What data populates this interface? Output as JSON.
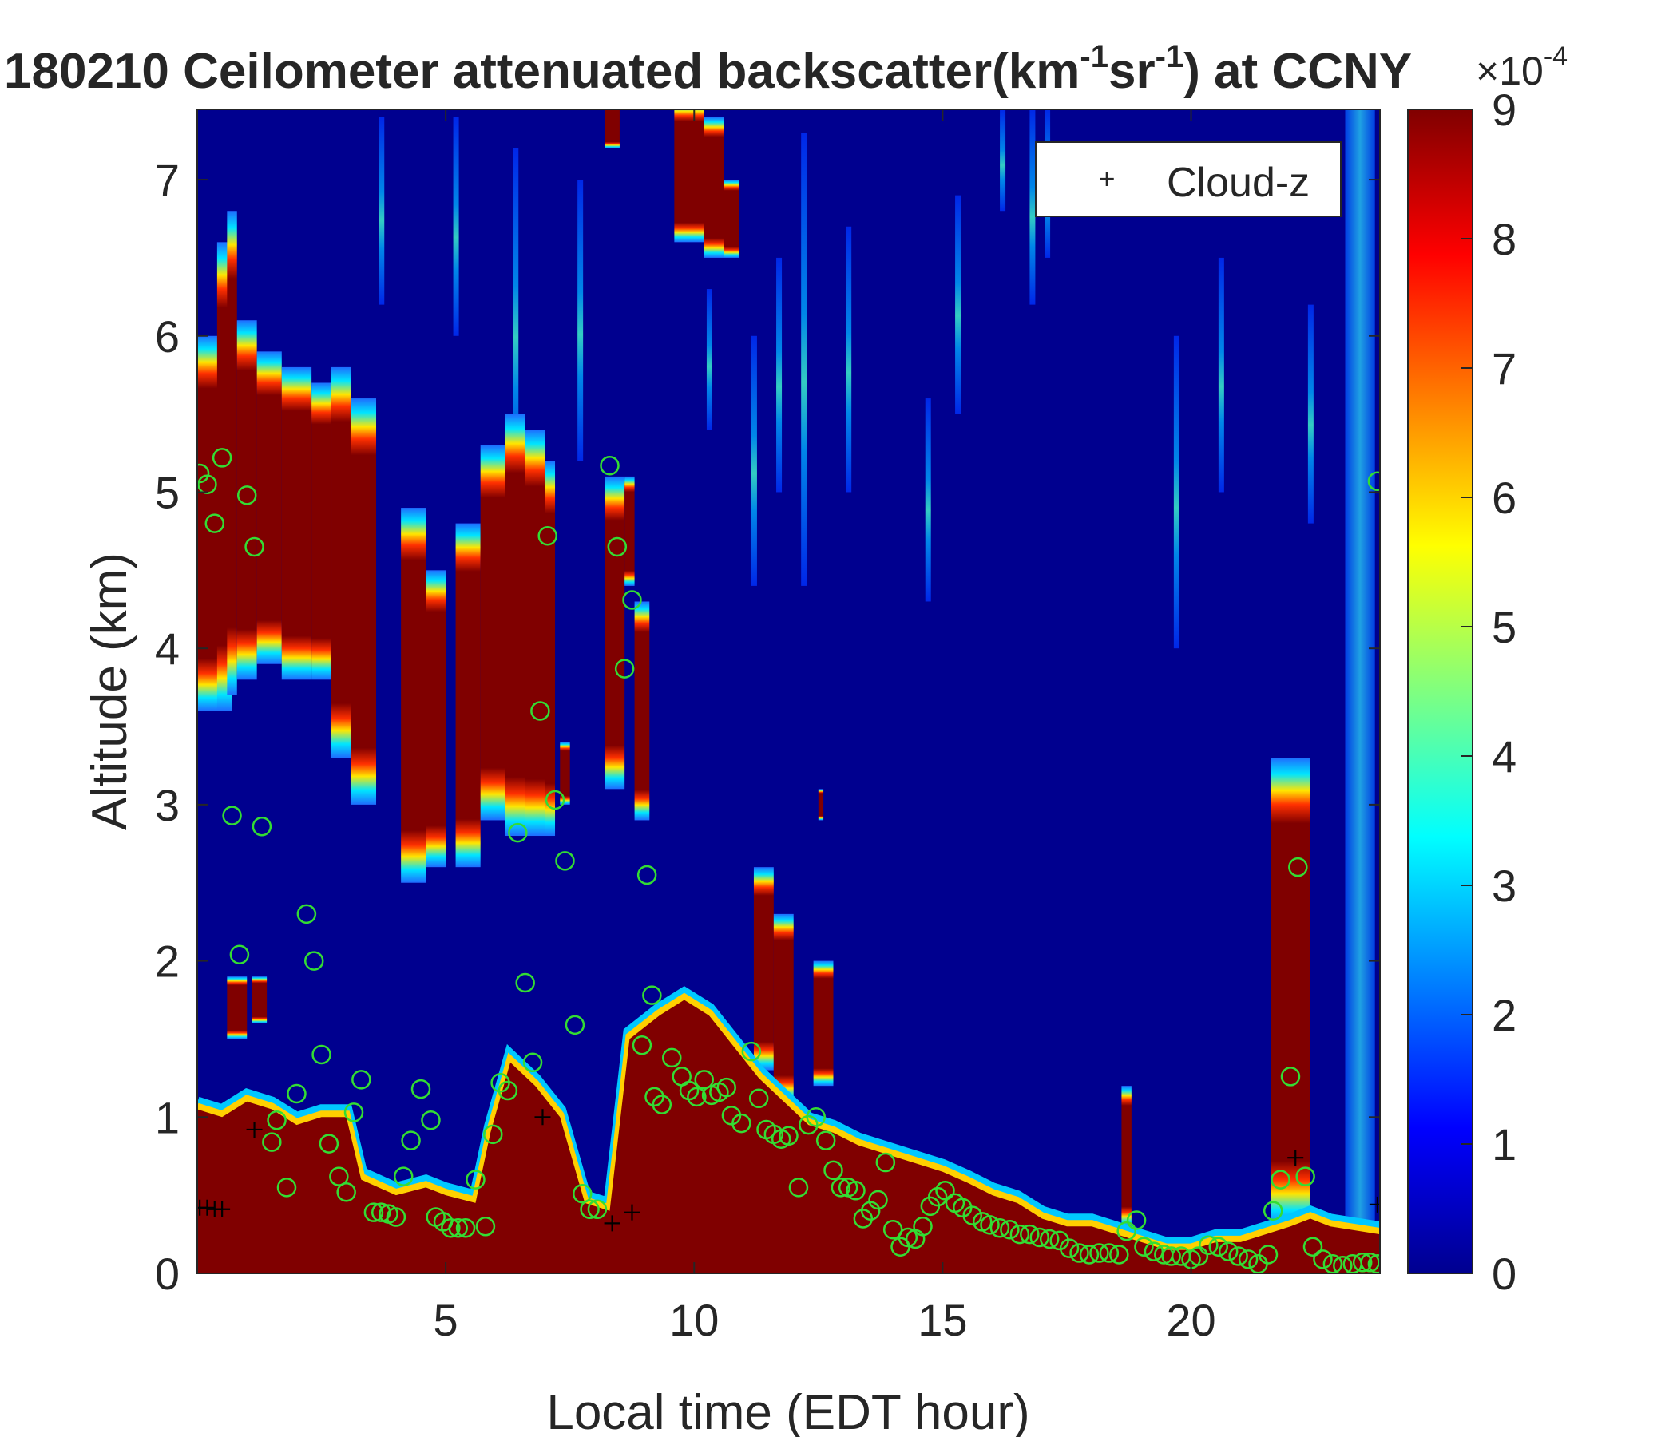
{
  "chart_data": {
    "type": "heatmap",
    "title_parts": {
      "prefix": "180210 Ceilometer attenuated backscatter(km",
      "sup1": "-1",
      "mid": "sr",
      "sup2": "-1",
      "suffix": ") at CCNY"
    },
    "xlabel": "Local time (EDT hour)",
    "ylabel": "Altitude (km)",
    "xlim": [
      0,
      23.8
    ],
    "ylim": [
      0,
      7.45
    ],
    "xticks": [
      "5",
      "10",
      "15",
      "20"
    ],
    "xtick_values": [
      5,
      10,
      15,
      20
    ],
    "yticks": [
      "0",
      "1",
      "2",
      "3",
      "4",
      "5",
      "6",
      "7"
    ],
    "ytick_values": [
      0,
      1,
      2,
      3,
      4,
      5,
      6,
      7
    ],
    "colorbar": {
      "min": 0,
      "max": 9,
      "ticks": [
        "0",
        "1",
        "2",
        "3",
        "4",
        "5",
        "6",
        "7",
        "8",
        "9"
      ],
      "tick_values": [
        0,
        1,
        2,
        3,
        4,
        5,
        6,
        7,
        8,
        9
      ],
      "multiplier": "×10",
      "exponent": "-4",
      "colormap": "jet"
    },
    "legend": {
      "position": "top-right",
      "entries": [
        {
          "marker": "+",
          "label": "Cloud-z"
        }
      ]
    },
    "colors": {
      "background": "#00008f",
      "saturated": "#800000",
      "mlh_marker": "#33dd33",
      "cloud_marker": "#000000"
    },
    "ground_layer_top": [
      [
        0.0,
        1.05
      ],
      [
        0.5,
        1.0
      ],
      [
        1.0,
        1.1
      ],
      [
        1.5,
        1.05
      ],
      [
        2.0,
        0.95
      ],
      [
        2.5,
        1.0
      ],
      [
        3.0,
        1.0
      ],
      [
        3.3,
        0.6
      ],
      [
        4.0,
        0.5
      ],
      [
        4.6,
        0.55
      ],
      [
        5.0,
        0.5
      ],
      [
        5.6,
        0.45
      ],
      [
        5.9,
        0.9
      ],
      [
        6.3,
        1.35
      ],
      [
        6.8,
        1.2
      ],
      [
        7.3,
        1.0
      ],
      [
        7.8,
        0.45
      ],
      [
        8.3,
        0.4
      ],
      [
        8.7,
        1.5
      ],
      [
        9.3,
        1.65
      ],
      [
        9.8,
        1.75
      ],
      [
        10.3,
        1.65
      ],
      [
        10.8,
        1.45
      ],
      [
        11.3,
        1.25
      ],
      [
        11.8,
        1.1
      ],
      [
        12.3,
        0.95
      ],
      [
        12.8,
        0.9
      ],
      [
        13.3,
        0.82
      ],
      [
        14.0,
        0.75
      ],
      [
        14.5,
        0.7
      ],
      [
        15.0,
        0.65
      ],
      [
        15.5,
        0.58
      ],
      [
        16.0,
        0.5
      ],
      [
        16.5,
        0.45
      ],
      [
        17.0,
        0.35
      ],
      [
        17.5,
        0.3
      ],
      [
        18.0,
        0.3
      ],
      [
        18.5,
        0.25
      ],
      [
        19.0,
        0.2
      ],
      [
        19.5,
        0.15
      ],
      [
        20.0,
        0.15
      ],
      [
        20.5,
        0.2
      ],
      [
        21.0,
        0.2
      ],
      [
        21.5,
        0.25
      ],
      [
        22.0,
        0.3
      ],
      [
        22.4,
        0.35
      ],
      [
        22.8,
        0.3
      ],
      [
        23.8,
        0.25
      ]
    ],
    "aerosol_cloud_blocks": [
      [
        0.0,
        0.6,
        3.6,
        6.0
      ],
      [
        0.4,
        0.7,
        3.6,
        6.6
      ],
      [
        0.6,
        0.8,
        3.7,
        6.8
      ],
      [
        0.8,
        1.2,
        3.8,
        6.1
      ],
      [
        1.2,
        1.7,
        3.9,
        5.9
      ],
      [
        1.7,
        2.3,
        3.8,
        5.8
      ],
      [
        2.3,
        2.7,
        3.8,
        5.7
      ],
      [
        2.7,
        3.1,
        3.3,
        5.8
      ],
      [
        3.1,
        3.6,
        3.0,
        5.6
      ],
      [
        4.1,
        4.6,
        2.5,
        4.9
      ],
      [
        4.6,
        5.0,
        2.6,
        4.5
      ],
      [
        5.2,
        5.7,
        2.6,
        4.8
      ],
      [
        5.7,
        6.2,
        2.9,
        5.3
      ],
      [
        6.2,
        6.6,
        2.8,
        5.5
      ],
      [
        6.6,
        7.0,
        2.8,
        5.4
      ],
      [
        7.0,
        7.2,
        2.8,
        5.2
      ],
      [
        7.3,
        7.5,
        3.0,
        3.4
      ],
      [
        8.2,
        8.6,
        3.1,
        5.1
      ],
      [
        8.6,
        8.8,
        4.4,
        5.1
      ],
      [
        8.8,
        9.1,
        2.9,
        4.3
      ],
      [
        9.6,
        10.2,
        6.6,
        7.5
      ],
      [
        10.2,
        10.6,
        6.5,
        7.4
      ],
      [
        10.6,
        10.9,
        6.5,
        7.0
      ],
      [
        8.2,
        8.5,
        7.2,
        7.5
      ],
      [
        0.6,
        1.0,
        1.5,
        1.9
      ],
      [
        1.1,
        1.4,
        1.6,
        1.9
      ],
      [
        12.5,
        12.6,
        2.9,
        3.1
      ],
      [
        11.2,
        11.6,
        1.3,
        2.6
      ],
      [
        11.6,
        12.0,
        1.1,
        2.3
      ],
      [
        12.4,
        12.8,
        1.2,
        2.0
      ],
      [
        18.6,
        18.8,
        0.3,
        1.2
      ],
      [
        21.6,
        22.4,
        0.3,
        3.3
      ]
    ],
    "faint_streaks": [
      [
        3.7,
        6.2,
        7.4
      ],
      [
        5.2,
        6.0,
        7.4
      ],
      [
        6.4,
        5.0,
        7.2
      ],
      [
        7.7,
        5.2,
        7.0
      ],
      [
        11.2,
        4.4,
        6.0
      ],
      [
        11.7,
        5.0,
        6.5
      ],
      [
        12.2,
        4.4,
        7.3
      ],
      [
        13.1,
        5.0,
        6.7
      ],
      [
        15.3,
        5.5,
        6.9
      ],
      [
        16.2,
        6.8,
        7.45
      ],
      [
        16.8,
        6.2,
        7.45
      ],
      [
        17.1,
        6.5,
        7.45
      ],
      [
        19.7,
        4.0,
        6.0
      ],
      [
        20.6,
        5.0,
        6.5
      ],
      [
        22.4,
        4.8,
        6.2
      ],
      [
        14.7,
        4.3,
        5.6
      ],
      [
        10.3,
        5.4,
        6.3
      ]
    ],
    "clear_slot": [
      23.1,
      23.7,
      0.3,
      7.45
    ],
    "mlh_points": [
      [
        0.05,
        5.12
      ],
      [
        0.2,
        5.05
      ],
      [
        0.35,
        4.8
      ],
      [
        0.5,
        5.22
      ],
      [
        0.7,
        2.93
      ],
      [
        0.85,
        2.04
      ],
      [
        1.0,
        4.98
      ],
      [
        1.15,
        4.65
      ],
      [
        1.3,
        2.86
      ],
      [
        1.6,
        0.98
      ],
      [
        1.5,
        0.84
      ],
      [
        1.8,
        0.55
      ],
      [
        2.0,
        1.15
      ],
      [
        2.2,
        2.3
      ],
      [
        2.35,
        2.0
      ],
      [
        2.5,
        1.4
      ],
      [
        2.65,
        0.83
      ],
      [
        2.85,
        0.62
      ],
      [
        3.0,
        0.52
      ],
      [
        3.15,
        1.03
      ],
      [
        3.3,
        1.24
      ],
      [
        3.55,
        0.39
      ],
      [
        3.7,
        0.39
      ],
      [
        3.85,
        0.38
      ],
      [
        4.0,
        0.36
      ],
      [
        4.15,
        0.62
      ],
      [
        4.3,
        0.85
      ],
      [
        4.5,
        1.18
      ],
      [
        4.7,
        0.98
      ],
      [
        4.8,
        0.36
      ],
      [
        4.95,
        0.33
      ],
      [
        5.1,
        0.29
      ],
      [
        5.25,
        0.29
      ],
      [
        5.4,
        0.29
      ],
      [
        5.6,
        0.6
      ],
      [
        5.8,
        0.3
      ],
      [
        5.95,
        0.89
      ],
      [
        6.1,
        1.22
      ],
      [
        6.25,
        1.17
      ],
      [
        6.45,
        2.82
      ],
      [
        6.6,
        1.86
      ],
      [
        6.75,
        1.35
      ],
      [
        6.9,
        3.6
      ],
      [
        7.05,
        4.72
      ],
      [
        7.2,
        3.03
      ],
      [
        7.4,
        2.64
      ],
      [
        7.6,
        1.59
      ],
      [
        7.75,
        0.51
      ],
      [
        7.9,
        0.41
      ],
      [
        8.05,
        0.41
      ],
      [
        8.3,
        5.17
      ],
      [
        8.45,
        4.65
      ],
      [
        8.6,
        3.87
      ],
      [
        8.75,
        4.31
      ],
      [
        9.05,
        2.55
      ],
      [
        9.15,
        1.78
      ],
      [
        8.95,
        1.46
      ],
      [
        9.2,
        1.13
      ],
      [
        9.35,
        1.08
      ],
      [
        9.55,
        1.38
      ],
      [
        9.75,
        1.26
      ],
      [
        9.9,
        1.17
      ],
      [
        10.05,
        1.13
      ],
      [
        10.2,
        1.24
      ],
      [
        10.35,
        1.14
      ],
      [
        10.5,
        1.16
      ],
      [
        10.65,
        1.19
      ],
      [
        10.75,
        1.01
      ],
      [
        10.95,
        0.96
      ],
      [
        11.15,
        1.42
      ],
      [
        11.3,
        1.12
      ],
      [
        11.45,
        0.92
      ],
      [
        11.6,
        0.89
      ],
      [
        11.75,
        0.86
      ],
      [
        11.9,
        0.88
      ],
      [
        12.1,
        0.55
      ],
      [
        12.3,
        0.95
      ],
      [
        12.45,
        1.0
      ],
      [
        12.65,
        0.85
      ],
      [
        12.8,
        0.66
      ],
      [
        12.95,
        0.55
      ],
      [
        13.1,
        0.55
      ],
      [
        13.25,
        0.53
      ],
      [
        13.4,
        0.35
      ],
      [
        13.55,
        0.4
      ],
      [
        13.7,
        0.47
      ],
      [
        13.85,
        0.71
      ],
      [
        14.0,
        0.28
      ],
      [
        14.15,
        0.17
      ],
      [
        14.3,
        0.23
      ],
      [
        14.45,
        0.22
      ],
      [
        14.6,
        0.3
      ],
      [
        14.75,
        0.43
      ],
      [
        14.9,
        0.49
      ],
      [
        15.05,
        0.53
      ],
      [
        15.25,
        0.45
      ],
      [
        15.4,
        0.42
      ],
      [
        15.6,
        0.37
      ],
      [
        15.8,
        0.33
      ],
      [
        15.95,
        0.31
      ],
      [
        16.15,
        0.29
      ],
      [
        16.35,
        0.28
      ],
      [
        16.55,
        0.25
      ],
      [
        16.75,
        0.25
      ],
      [
        16.95,
        0.23
      ],
      [
        17.15,
        0.22
      ],
      [
        17.35,
        0.21
      ],
      [
        17.55,
        0.16
      ],
      [
        17.75,
        0.13
      ],
      [
        17.95,
        0.12
      ],
      [
        18.15,
        0.13
      ],
      [
        18.35,
        0.13
      ],
      [
        18.55,
        0.12
      ],
      [
        18.7,
        0.27
      ],
      [
        18.9,
        0.34
      ],
      [
        19.05,
        0.17
      ],
      [
        19.25,
        0.14
      ],
      [
        19.45,
        0.12
      ],
      [
        19.6,
        0.11
      ],
      [
        19.8,
        0.11
      ],
      [
        20.0,
        0.09
      ],
      [
        20.15,
        0.11
      ],
      [
        20.35,
        0.18
      ],
      [
        20.55,
        0.17
      ],
      [
        20.75,
        0.14
      ],
      [
        20.95,
        0.11
      ],
      [
        21.15,
        0.09
      ],
      [
        21.35,
        0.06
      ],
      [
        21.55,
        0.12
      ],
      [
        21.65,
        0.4
      ],
      [
        21.8,
        0.6
      ],
      [
        22.0,
        1.26
      ],
      [
        22.15,
        2.6
      ],
      [
        22.3,
        0.62
      ],
      [
        22.45,
        0.17
      ],
      [
        22.65,
        0.09
      ],
      [
        22.85,
        0.06
      ],
      [
        23.05,
        0.05
      ],
      [
        23.25,
        0.06
      ],
      [
        23.45,
        0.07
      ],
      [
        23.6,
        0.07
      ],
      [
        23.75,
        0.06
      ],
      [
        23.75,
        5.07
      ]
    ],
    "cloud_points": [
      [
        0.05,
        0.42
      ],
      [
        0.2,
        0.42
      ],
      [
        0.35,
        0.41
      ],
      [
        0.5,
        0.41
      ],
      [
        1.15,
        0.92
      ],
      [
        6.95,
        1.0
      ],
      [
        8.35,
        0.32
      ],
      [
        8.75,
        0.39
      ],
      [
        22.1,
        0.74
      ],
      [
        23.75,
        0.44
      ]
    ]
  }
}
